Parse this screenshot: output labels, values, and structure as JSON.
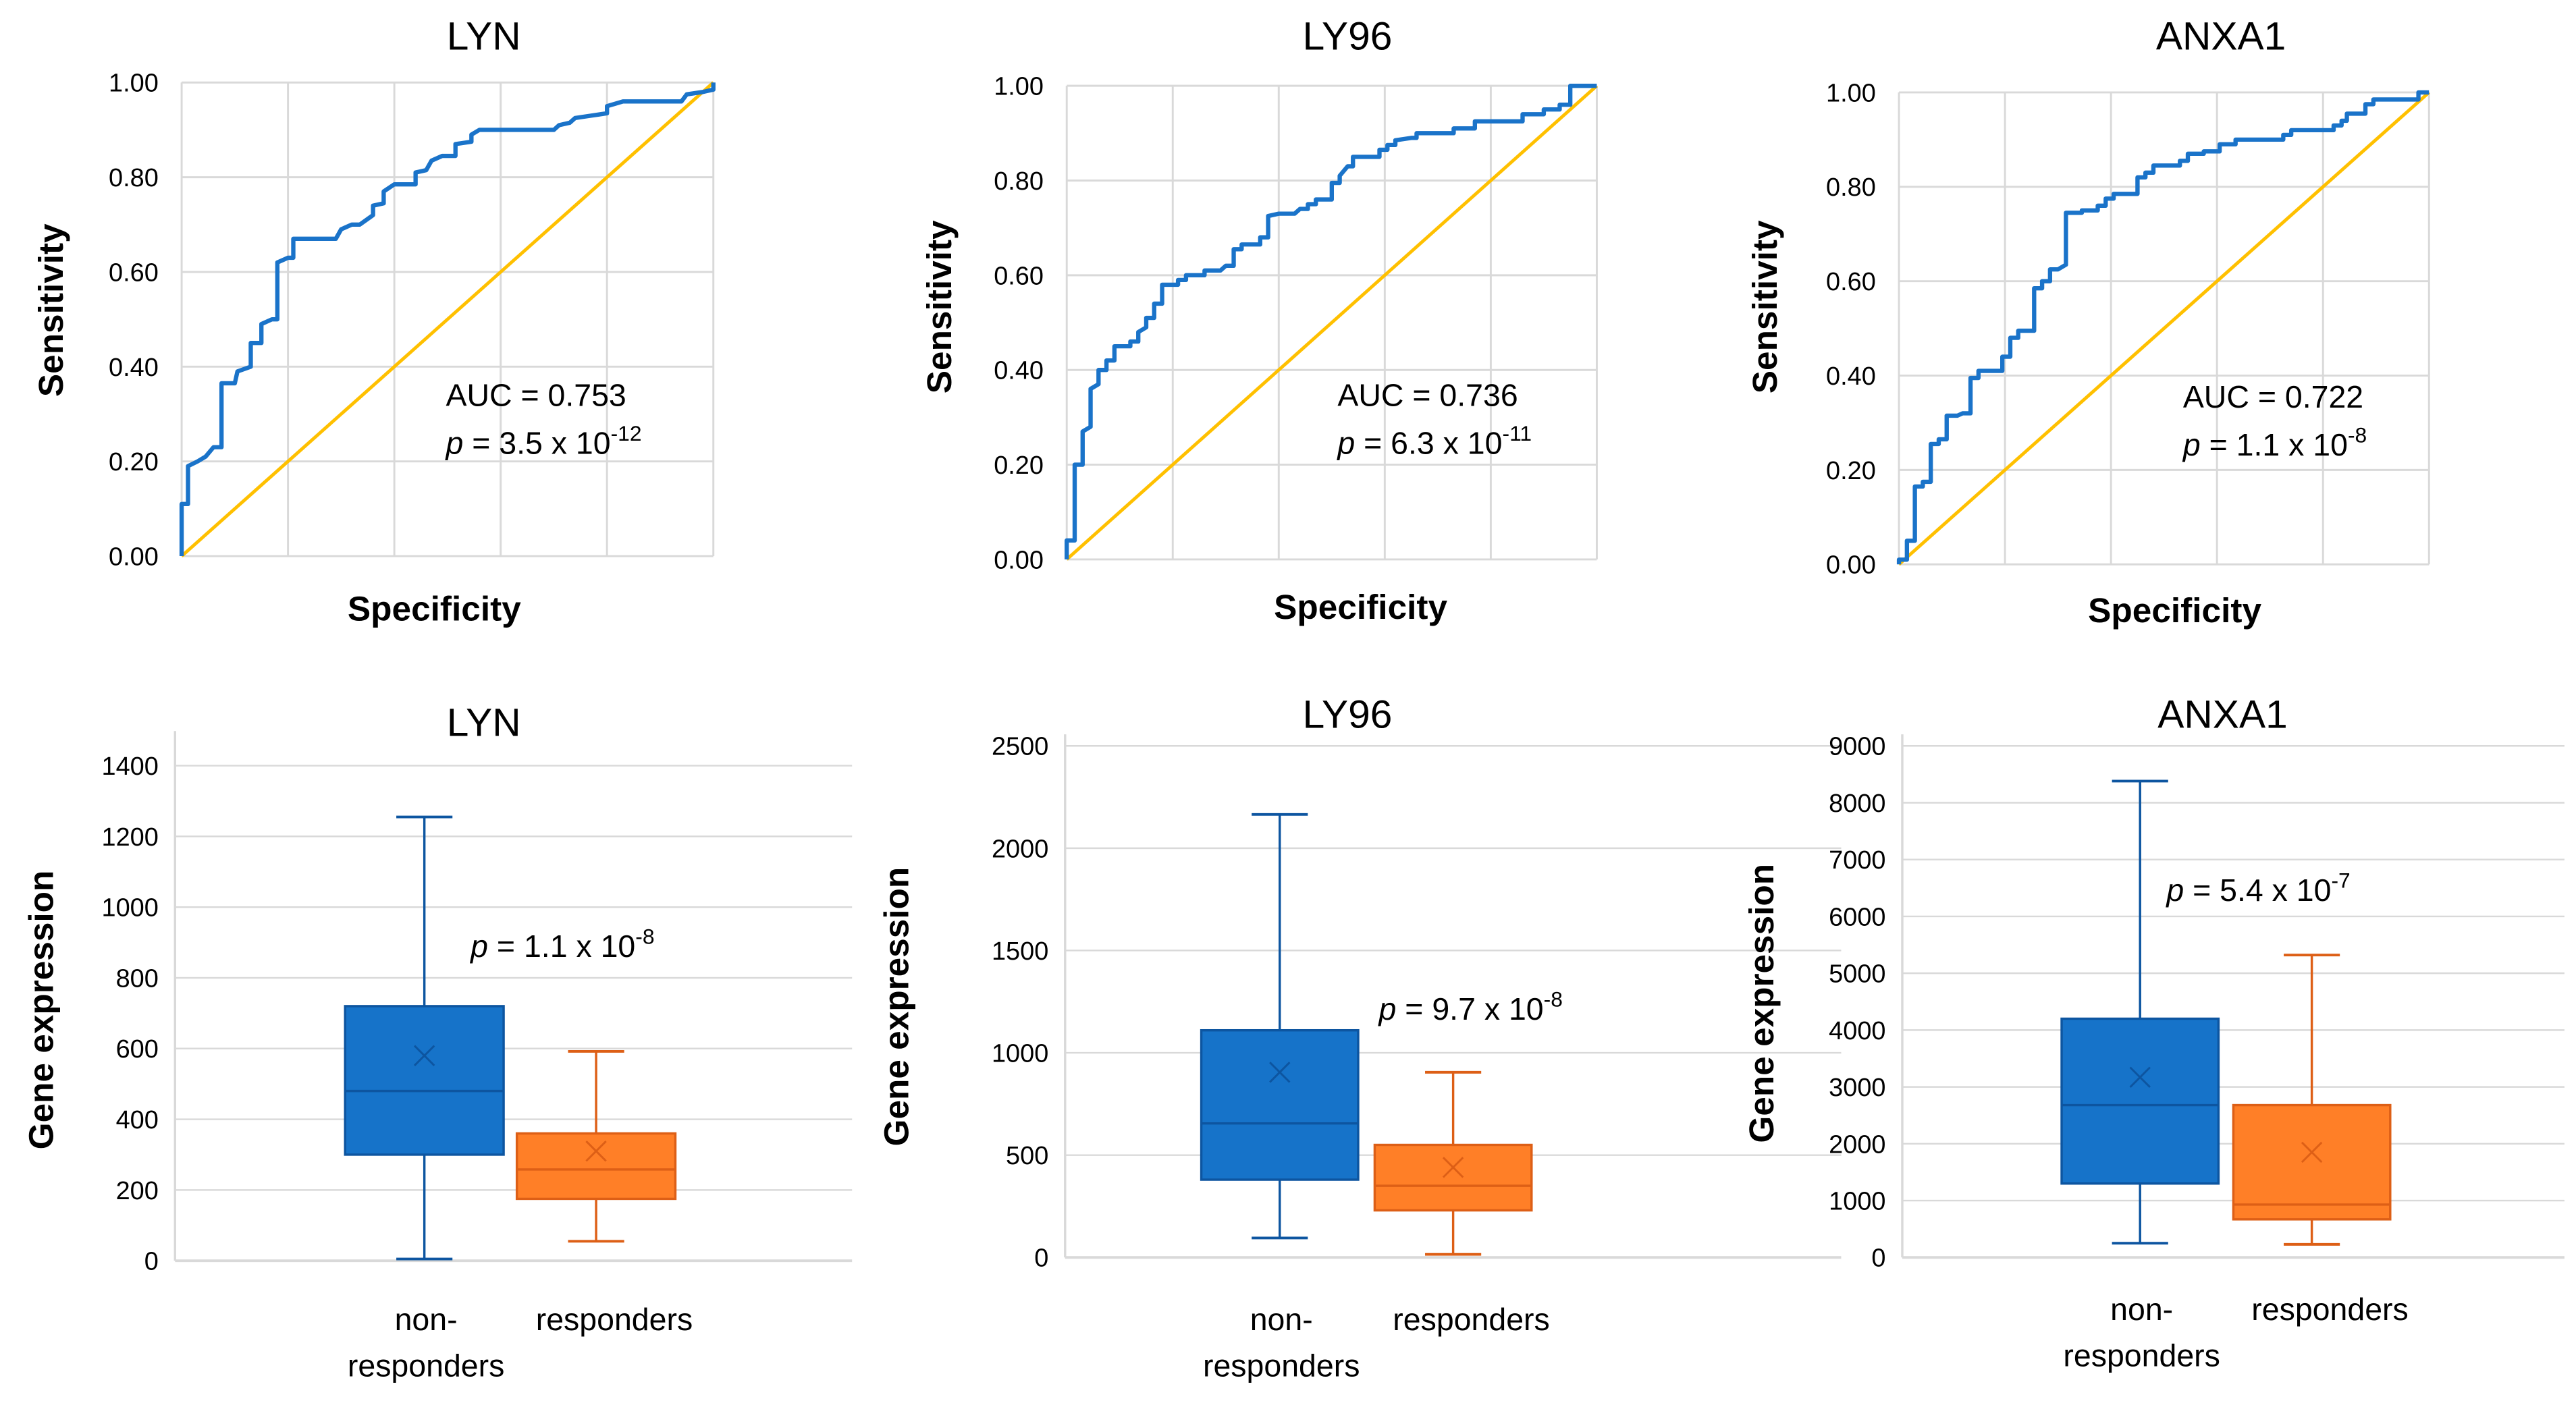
{
  "colors": {
    "roc_curve": "#1a73c9",
    "reference_line": "#ffc000",
    "grid": "#d9d9d9",
    "non_responders_fill": "#1673c9",
    "non_responders_stroke": "#0d55a0",
    "responders_fill": "#ff7f27",
    "responders_stroke": "#dd5f16"
  },
  "chart_data": [
    {
      "type": "line",
      "id": "roc-lyn",
      "title": "LYN",
      "xlabel": "Specificity",
      "ylabel": "Sensitivity",
      "ylim": [
        0,
        1
      ],
      "xlim": [
        0,
        1
      ],
      "grid": true,
      "yticks": [
        "0.00",
        "0.20",
        "0.40",
        "0.60",
        "0.80",
        "1.00"
      ],
      "annotation": {
        "auc": "AUC = 0.753",
        "p_label": "p",
        "p_text": " = 3.5 x 10",
        "p_exp": "-12"
      },
      "series": [
        {
          "name": "ROC",
          "points": [
            [
              0,
              0
            ],
            [
              0,
              0.11
            ],
            [
              0.012,
              0.11
            ],
            [
              0.012,
              0.19
            ],
            [
              0.03,
              0.2
            ],
            [
              0.045,
              0.21
            ],
            [
              0.06,
              0.23
            ],
            [
              0.075,
              0.23
            ],
            [
              0.075,
              0.365
            ],
            [
              0.1,
              0.365
            ],
            [
              0.105,
              0.39
            ],
            [
              0.13,
              0.4
            ],
            [
              0.13,
              0.45
            ],
            [
              0.15,
              0.45
            ],
            [
              0.15,
              0.49
            ],
            [
              0.17,
              0.5
            ],
            [
              0.18,
              0.5
            ],
            [
              0.18,
              0.62
            ],
            [
              0.2,
              0.63
            ],
            [
              0.21,
              0.63
            ],
            [
              0.21,
              0.67
            ],
            [
              0.29,
              0.67
            ],
            [
              0.3,
              0.69
            ],
            [
              0.32,
              0.7
            ],
            [
              0.335,
              0.7
            ],
            [
              0.36,
              0.72
            ],
            [
              0.36,
              0.74
            ],
            [
              0.38,
              0.745
            ],
            [
              0.38,
              0.77
            ],
            [
              0.4,
              0.785
            ],
            [
              0.44,
              0.785
            ],
            [
              0.44,
              0.81
            ],
            [
              0.46,
              0.815
            ],
            [
              0.47,
              0.835
            ],
            [
              0.49,
              0.845
            ],
            [
              0.515,
              0.845
            ],
            [
              0.515,
              0.87
            ],
            [
              0.545,
              0.875
            ],
            [
              0.545,
              0.89
            ],
            [
              0.56,
              0.9
            ],
            [
              0.7,
              0.9
            ],
            [
              0.71,
              0.91
            ],
            [
              0.73,
              0.915
            ],
            [
              0.74,
              0.925
            ],
            [
              0.77,
              0.93
            ],
            [
              0.8,
              0.935
            ],
            [
              0.8,
              0.95
            ],
            [
              0.83,
              0.96
            ],
            [
              0.94,
              0.96
            ],
            [
              0.95,
              0.975
            ],
            [
              0.98,
              0.98
            ],
            [
              1,
              0.985
            ],
            [
              1,
              1
            ]
          ]
        },
        {
          "name": "Reference",
          "points": [
            [
              0,
              0
            ],
            [
              1,
              1
            ]
          ]
        }
      ]
    },
    {
      "type": "line",
      "id": "roc-ly96",
      "title": "LY96",
      "xlabel": "Specificity",
      "ylabel": "Sensitivity",
      "ylim": [
        0,
        1
      ],
      "xlim": [
        0,
        1
      ],
      "grid": true,
      "yticks": [
        "0.00",
        "0.20",
        "0.40",
        "0.60",
        "0.80",
        "1.00"
      ],
      "annotation": {
        "auc": "AUC = 0.736",
        "p_label": "p",
        "p_text": " = 6.3 x 10",
        "p_exp": "-11"
      },
      "series": [
        {
          "name": "ROC",
          "points": [
            [
              0,
              0
            ],
            [
              0,
              0.04
            ],
            [
              0.015,
              0.04
            ],
            [
              0.015,
              0.2
            ],
            [
              0.03,
              0.2
            ],
            [
              0.03,
              0.27
            ],
            [
              0.045,
              0.28
            ],
            [
              0.045,
              0.36
            ],
            [
              0.06,
              0.37
            ],
            [
              0.06,
              0.4
            ],
            [
              0.075,
              0.4
            ],
            [
              0.075,
              0.42
            ],
            [
              0.09,
              0.42
            ],
            [
              0.09,
              0.45
            ],
            [
              0.12,
              0.45
            ],
            [
              0.12,
              0.46
            ],
            [
              0.135,
              0.46
            ],
            [
              0.135,
              0.48
            ],
            [
              0.15,
              0.49
            ],
            [
              0.15,
              0.51
            ],
            [
              0.165,
              0.51
            ],
            [
              0.165,
              0.54
            ],
            [
              0.18,
              0.54
            ],
            [
              0.18,
              0.58
            ],
            [
              0.21,
              0.58
            ],
            [
              0.21,
              0.59
            ],
            [
              0.225,
              0.59
            ],
            [
              0.225,
              0.6
            ],
            [
              0.26,
              0.6
            ],
            [
              0.26,
              0.61
            ],
            [
              0.29,
              0.61
            ],
            [
              0.3,
              0.62
            ],
            [
              0.315,
              0.62
            ],
            [
              0.315,
              0.655
            ],
            [
              0.33,
              0.655
            ],
            [
              0.33,
              0.665
            ],
            [
              0.365,
              0.665
            ],
            [
              0.365,
              0.68
            ],
            [
              0.38,
              0.68
            ],
            [
              0.38,
              0.725
            ],
            [
              0.4,
              0.73
            ],
            [
              0.43,
              0.73
            ],
            [
              0.44,
              0.74
            ],
            [
              0.455,
              0.74
            ],
            [
              0.455,
              0.75
            ],
            [
              0.47,
              0.75
            ],
            [
              0.47,
              0.76
            ],
            [
              0.5,
              0.76
            ],
            [
              0.5,
              0.795
            ],
            [
              0.515,
              0.795
            ],
            [
              0.515,
              0.81
            ],
            [
              0.53,
              0.83
            ],
            [
              0.54,
              0.83
            ],
            [
              0.54,
              0.85
            ],
            [
              0.59,
              0.85
            ],
            [
              0.59,
              0.865
            ],
            [
              0.605,
              0.865
            ],
            [
              0.605,
              0.875
            ],
            [
              0.62,
              0.875
            ],
            [
              0.62,
              0.885
            ],
            [
              0.65,
              0.89
            ],
            [
              0.66,
              0.89
            ],
            [
              0.66,
              0.9
            ],
            [
              0.73,
              0.9
            ],
            [
              0.73,
              0.91
            ],
            [
              0.77,
              0.91
            ],
            [
              0.77,
              0.925
            ],
            [
              0.86,
              0.925
            ],
            [
              0.86,
              0.94
            ],
            [
              0.9,
              0.94
            ],
            [
              0.9,
              0.95
            ],
            [
              0.93,
              0.95
            ],
            [
              0.93,
              0.96
            ],
            [
              0.95,
              0.96
            ],
            [
              0.95,
              1
            ],
            [
              1,
              1
            ]
          ]
        },
        {
          "name": "Reference",
          "points": [
            [
              0,
              0
            ],
            [
              1,
              1
            ]
          ]
        }
      ]
    },
    {
      "type": "line",
      "id": "roc-anxa1",
      "title": "ANXA1",
      "xlabel": "Specificity",
      "ylabel": "Sensitivity",
      "ylim": [
        0,
        1
      ],
      "xlim": [
        0,
        1
      ],
      "grid": true,
      "yticks": [
        "0.00",
        "0.20",
        "0.40",
        "0.60",
        "0.80",
        "1.00"
      ],
      "annotation": {
        "auc": "AUC = 0.722",
        "p_label": "p",
        "p_text": " = 1.1 x 10",
        "p_exp": "-8"
      },
      "series": [
        {
          "name": "ROC",
          "points": [
            [
              0,
              0
            ],
            [
              0,
              0.01
            ],
            [
              0.015,
              0.01
            ],
            [
              0.015,
              0.05
            ],
            [
              0.03,
              0.05
            ],
            [
              0.03,
              0.165
            ],
            [
              0.045,
              0.165
            ],
            [
              0.045,
              0.175
            ],
            [
              0.06,
              0.175
            ],
            [
              0.06,
              0.255
            ],
            [
              0.075,
              0.255
            ],
            [
              0.075,
              0.265
            ],
            [
              0.09,
              0.265
            ],
            [
              0.09,
              0.315
            ],
            [
              0.11,
              0.315
            ],
            [
              0.12,
              0.32
            ],
            [
              0.135,
              0.32
            ],
            [
              0.135,
              0.395
            ],
            [
              0.15,
              0.395
            ],
            [
              0.15,
              0.41
            ],
            [
              0.195,
              0.41
            ],
            [
              0.195,
              0.44
            ],
            [
              0.21,
              0.44
            ],
            [
              0.21,
              0.48
            ],
            [
              0.225,
              0.48
            ],
            [
              0.225,
              0.495
            ],
            [
              0.255,
              0.495
            ],
            [
              0.255,
              0.585
            ],
            [
              0.27,
              0.585
            ],
            [
              0.27,
              0.6
            ],
            [
              0.285,
              0.6
            ],
            [
              0.285,
              0.625
            ],
            [
              0.3,
              0.625
            ],
            [
              0.315,
              0.635
            ],
            [
              0.315,
              0.745
            ],
            [
              0.345,
              0.745
            ],
            [
              0.345,
              0.75
            ],
            [
              0.375,
              0.75
            ],
            [
              0.375,
              0.76
            ],
            [
              0.39,
              0.76
            ],
            [
              0.39,
              0.775
            ],
            [
              0.405,
              0.775
            ],
            [
              0.405,
              0.785
            ],
            [
              0.45,
              0.785
            ],
            [
              0.45,
              0.82
            ],
            [
              0.465,
              0.82
            ],
            [
              0.465,
              0.83
            ],
            [
              0.48,
              0.83
            ],
            [
              0.48,
              0.845
            ],
            [
              0.53,
              0.845
            ],
            [
              0.53,
              0.855
            ],
            [
              0.545,
              0.855
            ],
            [
              0.545,
              0.87
            ],
            [
              0.575,
              0.87
            ],
            [
              0.575,
              0.875
            ],
            [
              0.605,
              0.875
            ],
            [
              0.605,
              0.89
            ],
            [
              0.635,
              0.89
            ],
            [
              0.635,
              0.9
            ],
            [
              0.725,
              0.9
            ],
            [
              0.725,
              0.91
            ],
            [
              0.74,
              0.91
            ],
            [
              0.74,
              0.92
            ],
            [
              0.82,
              0.92
            ],
            [
              0.82,
              0.93
            ],
            [
              0.835,
              0.93
            ],
            [
              0.835,
              0.94
            ],
            [
              0.845,
              0.94
            ],
            [
              0.845,
              0.955
            ],
            [
              0.88,
              0.955
            ],
            [
              0.88,
              0.975
            ],
            [
              0.895,
              0.975
            ],
            [
              0.895,
              0.985
            ],
            [
              0.98,
              0.985
            ],
            [
              0.98,
              1
            ],
            [
              1,
              1
            ]
          ]
        },
        {
          "name": "Reference",
          "points": [
            [
              0,
              0
            ],
            [
              1,
              1
            ]
          ]
        }
      ]
    },
    {
      "type": "box",
      "id": "box-lyn",
      "title": "LYN",
      "ylabel": "Gene expression",
      "ylim": [
        0,
        1400
      ],
      "ystep": 200,
      "grid": true,
      "yticks": [
        "0",
        "200",
        "400",
        "600",
        "800",
        "1000",
        "1200",
        "1400"
      ],
      "annotation": {
        "p_label": "p",
        "p_text": " = 1.1 x 10",
        "p_exp": "-8"
      },
      "groups": [
        {
          "name_lines": [
            "non-",
            "responders"
          ],
          "min": 5,
          "q1": 300,
          "median": 480,
          "q3": 720,
          "max": 1255,
          "mean": 580
        },
        {
          "name_lines": [
            "responders"
          ],
          "min": 55,
          "q1": 175,
          "median": 258,
          "q3": 360,
          "max": 592,
          "mean": 310
        }
      ]
    },
    {
      "type": "box",
      "id": "box-ly96",
      "title": "LY96",
      "ylabel": "Gene expression",
      "ylim": [
        0,
        2500
      ],
      "ystep": 500,
      "grid": true,
      "yticks": [
        "0",
        "500",
        "1000",
        "1500",
        "2000",
        "2500"
      ],
      "annotation": {
        "p_label": "p",
        "p_text": " = 9.7 x 10",
        "p_exp": "-8"
      },
      "groups": [
        {
          "name_lines": [
            "non-",
            "responders"
          ],
          "min": 95,
          "q1": 380,
          "median": 655,
          "q3": 1110,
          "max": 2165,
          "mean": 905
        },
        {
          "name_lines": [
            "responders"
          ],
          "min": 15,
          "q1": 230,
          "median": 350,
          "q3": 550,
          "max": 905,
          "mean": 440
        }
      ]
    },
    {
      "type": "box",
      "id": "box-anxa1",
      "title": "ANXA1",
      "ylabel": "Gene expression",
      "ylim": [
        0,
        9000
      ],
      "ystep": 1000,
      "grid": true,
      "yticks": [
        "0",
        "1000",
        "2000",
        "3000",
        "4000",
        "5000",
        "6000",
        "7000",
        "8000",
        "9000"
      ],
      "annotation": {
        "p_label": "p",
        "p_text": " = 5.4 x 10",
        "p_exp": "-7"
      },
      "groups": [
        {
          "name_lines": [
            "non-",
            "responders"
          ],
          "min": 250,
          "q1": 1300,
          "median": 2680,
          "q3": 4200,
          "max": 8380,
          "mean": 3170
        },
        {
          "name_lines": [
            "responders"
          ],
          "min": 230,
          "q1": 670,
          "median": 930,
          "q3": 2680,
          "max": 5320,
          "mean": 1850
        }
      ]
    }
  ]
}
